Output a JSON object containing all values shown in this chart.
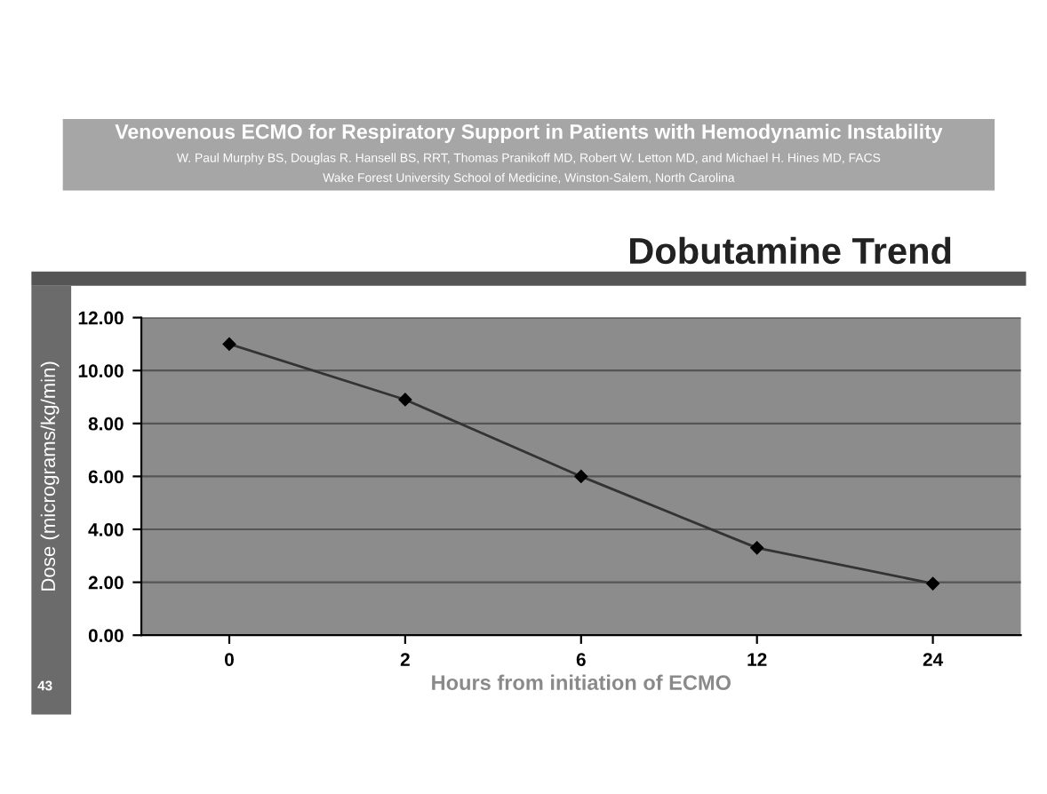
{
  "chart_data": {
    "type": "line",
    "title": "Dobutamine Trend",
    "xlabel": "Hours from initiation of ECMO",
    "ylabel": "Dose (micrograms/kg/min)",
    "annotations": [
      "Venovenous ECMO for Respiratory Support in Patients with Hemodynamic Instability",
      "W. Paul Murphy BS, Douglas R. Hansell BS, RRT, Thomas Pranikoff MD, Robert W. Letton MD, and Michael H. Hines MD, FACS",
      "Wake Forest University School of Medicine, Winston-Salem, North Carolina",
      "43"
    ],
    "categories": [
      "0",
      "2",
      "6",
      "12",
      "24"
    ],
    "series": [
      {
        "color": "#333333",
        "values": [
          11.0,
          8.9,
          6.0,
          3.3,
          1.95
        ]
      }
    ],
    "ylim": [
      0,
      12
    ],
    "yticks": [
      {
        "value": 0,
        "label": "0.00"
      },
      {
        "value": 2,
        "label": "2.00"
      },
      {
        "value": 4,
        "label": "4.00"
      },
      {
        "value": 6,
        "label": "6.00"
      },
      {
        "value": 8,
        "label": "8.00"
      },
      {
        "value": 10,
        "label": "10.00"
      },
      {
        "value": 12,
        "label": "12.00"
      }
    ],
    "grid": "y",
    "marker": "diamond",
    "line_style": "solid"
  }
}
